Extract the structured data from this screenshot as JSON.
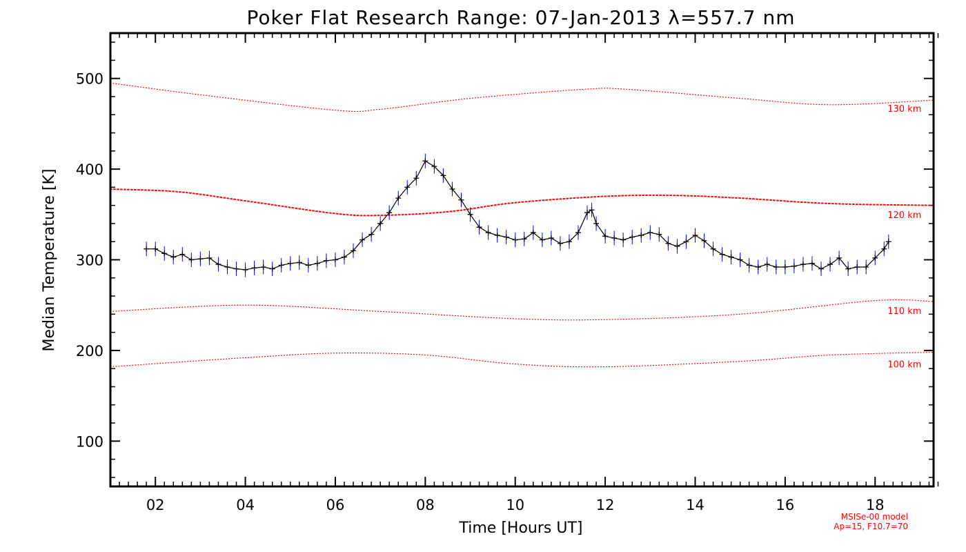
{
  "chart_data": {
    "type": "line",
    "title": "Poker Flat Research Range: 07-Jan-2013 λ=557.7 nm",
    "xlabel": "Time [Hours UT]",
    "ylabel": "Median Temperature [K]",
    "xlim": [
      1,
      19.3
    ],
    "ylim": [
      50,
      550
    ],
    "x_ticks": [
      2,
      4,
      6,
      8,
      10,
      12,
      14,
      16,
      18
    ],
    "x_tick_labels": [
      "02",
      "04",
      "06",
      "08",
      "10",
      "12",
      "14",
      "16",
      "18"
    ],
    "y_ticks": [
      100,
      200,
      300,
      400,
      500
    ],
    "y_tick_labels": [
      "100",
      "200",
      "300",
      "400",
      "500"
    ],
    "colors": {
      "data_line": "#000000",
      "error_bars": "#0000ff",
      "model": "#ff0000"
    },
    "series": [
      {
        "style": "line with plus markers and vertical error bars",
        "error": 8,
        "points": [
          [
            1.8,
            312
          ],
          [
            2.0,
            312
          ],
          [
            2.2,
            307
          ],
          [
            2.4,
            303
          ],
          [
            2.6,
            306
          ],
          [
            2.8,
            300
          ],
          [
            3.0,
            301
          ],
          [
            3.2,
            302
          ],
          [
            3.4,
            295
          ],
          [
            3.6,
            292
          ],
          [
            3.8,
            290
          ],
          [
            4.0,
            289
          ],
          [
            4.2,
            291
          ],
          [
            4.4,
            292
          ],
          [
            4.6,
            290
          ],
          [
            4.8,
            294
          ],
          [
            5.0,
            296
          ],
          [
            5.2,
            297
          ],
          [
            5.4,
            294
          ],
          [
            5.6,
            296
          ],
          [
            5.8,
            299
          ],
          [
            6.0,
            300
          ],
          [
            6.2,
            303
          ],
          [
            6.4,
            310
          ],
          [
            6.6,
            322
          ],
          [
            6.8,
            328
          ],
          [
            7.0,
            340
          ],
          [
            7.2,
            352
          ],
          [
            7.4,
            368
          ],
          [
            7.6,
            380
          ],
          [
            7.8,
            390
          ],
          [
            8.0,
            409
          ],
          [
            8.2,
            403
          ],
          [
            8.4,
            393
          ],
          [
            8.6,
            378
          ],
          [
            8.8,
            366
          ],
          [
            9.0,
            350
          ],
          [
            9.2,
            336
          ],
          [
            9.4,
            330
          ],
          [
            9.6,
            327
          ],
          [
            9.8,
            325
          ],
          [
            10.0,
            322
          ],
          [
            10.2,
            323
          ],
          [
            10.4,
            330
          ],
          [
            10.6,
            322
          ],
          [
            10.8,
            324
          ],
          [
            11.0,
            318
          ],
          [
            11.2,
            320
          ],
          [
            11.4,
            330
          ],
          [
            11.6,
            352
          ],
          [
            11.7,
            355
          ],
          [
            11.8,
            340
          ],
          [
            12.0,
            326
          ],
          [
            12.2,
            324
          ],
          [
            12.4,
            322
          ],
          [
            12.6,
            325
          ],
          [
            12.8,
            327
          ],
          [
            13.0,
            330
          ],
          [
            13.2,
            328
          ],
          [
            13.4,
            318
          ],
          [
            13.6,
            315
          ],
          [
            13.8,
            320
          ],
          [
            14.0,
            327
          ],
          [
            14.2,
            321
          ],
          [
            14.4,
            312
          ],
          [
            14.6,
            306
          ],
          [
            14.8,
            303
          ],
          [
            15.0,
            300
          ],
          [
            15.2,
            294
          ],
          [
            15.4,
            292
          ],
          [
            15.6,
            295
          ],
          [
            15.8,
            292
          ],
          [
            16.0,
            292
          ],
          [
            16.2,
            293
          ],
          [
            16.4,
            295
          ],
          [
            16.6,
            296
          ],
          [
            16.8,
            290
          ],
          [
            17.0,
            295
          ],
          [
            17.2,
            302
          ],
          [
            17.4,
            290
          ],
          [
            17.6,
            292
          ],
          [
            17.8,
            292
          ],
          [
            18.0,
            302
          ],
          [
            18.2,
            312
          ],
          [
            18.3,
            320
          ]
        ]
      },
      {
        "name": "130 km",
        "style": "dotted model",
        "points": [
          [
            1,
            495
          ],
          [
            3,
            482
          ],
          [
            6,
            465
          ],
          [
            7,
            466
          ],
          [
            9,
            478
          ],
          [
            11.5,
            488
          ],
          [
            12.5,
            488
          ],
          [
            15,
            478
          ],
          [
            17,
            471
          ],
          [
            19.3,
            476
          ]
        ]
      },
      {
        "name": "120 km",
        "style": "dotted model",
        "points": [
          [
            1,
            378
          ],
          [
            2.5,
            375
          ],
          [
            4,
            365
          ],
          [
            6,
            351
          ],
          [
            7,
            349
          ],
          [
            8.5,
            353
          ],
          [
            10,
            363
          ],
          [
            12,
            370
          ],
          [
            13.5,
            371
          ],
          [
            15,
            368
          ],
          [
            17,
            362
          ],
          [
            19.3,
            360
          ]
        ]
      },
      {
        "name": "110 km",
        "style": "dotted model",
        "points": [
          [
            1,
            243
          ],
          [
            4,
            250
          ],
          [
            7,
            243
          ],
          [
            10,
            235
          ],
          [
            12,
            234
          ],
          [
            15,
            240
          ],
          [
            18,
            255
          ],
          [
            19.3,
            254
          ]
        ]
      },
      {
        "name": "100 km",
        "style": "dotted model",
        "points": [
          [
            1,
            182
          ],
          [
            4,
            192
          ],
          [
            6,
            197
          ],
          [
            8,
            195
          ],
          [
            10,
            185
          ],
          [
            12,
            182
          ],
          [
            15,
            188
          ],
          [
            17,
            195
          ],
          [
            19.3,
            198
          ]
        ]
      }
    ],
    "model_labels": [
      {
        "text": "130 km",
        "x": 18,
        "y": 467
      },
      {
        "text": "120 km",
        "x": 18,
        "y": 350
      },
      {
        "text": "110 km",
        "x": 18,
        "y": 244
      },
      {
        "text": "100 km",
        "x": 18,
        "y": 185
      }
    ],
    "footnote": {
      "line1": "MSISe-00 model",
      "line2": "Ap=15, F10.7=70"
    }
  }
}
